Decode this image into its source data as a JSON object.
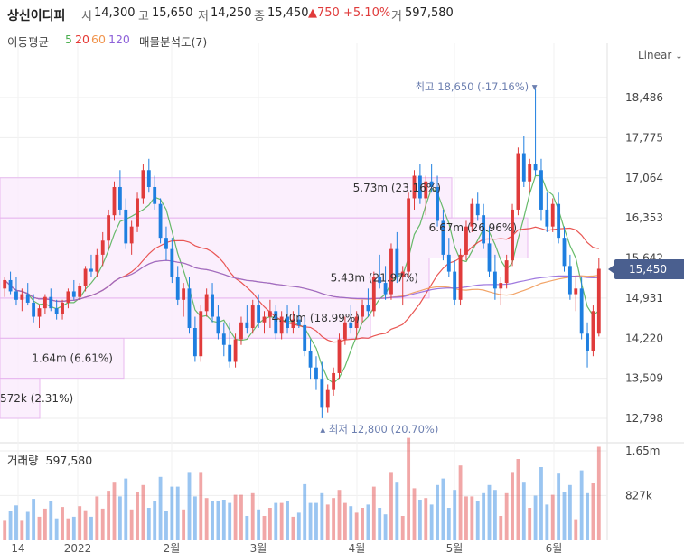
{
  "header": {
    "name": "상신이디피",
    "open_label": "시",
    "open": "14,300",
    "high_label": "고",
    "high": "15,650",
    "low_label": "저",
    "low": "14,250",
    "close_label": "종",
    "close": "15,450",
    "change": "▲750",
    "change_pct": "+5.10%",
    "volume_label": "거",
    "volume": "597,580"
  },
  "indicators": {
    "ma_label": "이동평균",
    "ma_periods": [
      "5",
      "20",
      "60",
      "120"
    ],
    "ma_colors": [
      "#4caf50",
      "#e53935",
      "#f0944d",
      "#8e62d9"
    ],
    "profile_label": "매물분석도(7)"
  },
  "scale_label": "Linear",
  "last_price_tag": "15,450",
  "volume_panel": {
    "label": "거래량",
    "value": "597,580"
  },
  "chart_data": {
    "type": "candlestick",
    "y_ticks": [
      "18,486",
      "17,775",
      "17,064",
      "16,353",
      "15,642",
      "14,931",
      "14,220",
      "13,509",
      "12,798"
    ],
    "y_tick_values": [
      18486,
      17775,
      17064,
      16353,
      15642,
      14931,
      14220,
      13509,
      12798
    ],
    "x_ticks": [
      "14",
      "2022",
      "2월",
      "3월",
      "4월",
      "5월",
      "6월"
    ],
    "volume_ticks": [
      "1.65m",
      "827k"
    ],
    "volume_tick_values": [
      1650000,
      827000
    ],
    "annotations": [
      {
        "label": "최고 18,650 (-17.16%)",
        "value": 18650
      },
      {
        "label": "최저 12,800 (20.70%)",
        "value": 12800
      }
    ],
    "volume_profile": [
      {
        "label": "572k (2.31%)",
        "low": 12798,
        "high": 13509
      },
      {
        "label": "1.64m (6.61%)",
        "low": 13509,
        "high": 14220
      },
      {
        "label": "4.70m (18.99%)",
        "low": 14220,
        "high": 14931
      },
      {
        "label": "5.43m (21.97%)",
        "low": 14931,
        "high": 15642
      },
      {
        "label": "6.67m (26.96%)",
        "low": 15642,
        "high": 16353
      },
      {
        "label": "5.73m (23.16%)",
        "low": 16353,
        "high": 17064
      }
    ],
    "candles": [
      [
        15100,
        15300,
        14950,
        15250
      ],
      [
        15250,
        15400,
        15000,
        15050
      ],
      [
        15050,
        15300,
        14800,
        14900
      ],
      [
        14900,
        15100,
        14700,
        15000
      ],
      [
        15000,
        15200,
        14800,
        14850
      ],
      [
        14850,
        15000,
        14500,
        14600
      ],
      [
        14600,
        14800,
        14400,
        14750
      ],
      [
        14750,
        15000,
        14650,
        14950
      ],
      [
        14950,
        15100,
        14700,
        14750
      ],
      [
        14750,
        14900,
        14550,
        14650
      ],
      [
        14650,
        14900,
        14550,
        14850
      ],
      [
        14850,
        15100,
        14750,
        15050
      ],
      [
        15050,
        15250,
        14900,
        14950
      ],
      [
        14950,
        15200,
        14900,
        15150
      ],
      [
        15150,
        15500,
        15050,
        15450
      ],
      [
        15450,
        15700,
        15300,
        15400
      ],
      [
        15400,
        15800,
        15300,
        15700
      ],
      [
        15700,
        16100,
        15500,
        15950
      ],
      [
        15950,
        16500,
        15800,
        16400
      ],
      [
        16400,
        17000,
        16300,
        16900
      ],
      [
        16900,
        17200,
        16400,
        16500
      ],
      [
        16500,
        16700,
        15800,
        15900
      ],
      [
        15900,
        16300,
        15700,
        16200
      ],
      [
        16200,
        16800,
        16100,
        16700
      ],
      [
        16700,
        17300,
        16600,
        17200
      ],
      [
        17200,
        17400,
        16800,
        16900
      ],
      [
        16900,
        17100,
        16500,
        16600
      ],
      [
        16600,
        16700,
        15900,
        16000
      ],
      [
        16000,
        16200,
        15600,
        15800
      ],
      [
        15800,
        16000,
        15200,
        15300
      ],
      [
        15300,
        15500,
        14800,
        14900
      ],
      [
        14900,
        15200,
        14600,
        15100
      ],
      [
        15100,
        15300,
        14300,
        14400
      ],
      [
        14400,
        14600,
        13800,
        13900
      ],
      [
        13900,
        14800,
        13800,
        14700
      ],
      [
        14700,
        15100,
        14600,
        15000
      ],
      [
        15000,
        15200,
        14500,
        14600
      ],
      [
        14600,
        14800,
        14200,
        14300
      ],
      [
        14300,
        14500,
        13900,
        14100
      ],
      [
        14100,
        14500,
        13700,
        13800
      ],
      [
        13800,
        14300,
        13700,
        14200
      ],
      [
        14200,
        14600,
        14100,
        14500
      ],
      [
        14500,
        14800,
        14300,
        14400
      ],
      [
        14400,
        14900,
        14300,
        14800
      ],
      [
        14800,
        15000,
        14400,
        14500
      ],
      [
        14500,
        14700,
        14300,
        14600
      ],
      [
        14600,
        14900,
        14400,
        14700
      ],
      [
        14700,
        14800,
        14200,
        14300
      ],
      [
        14300,
        14700,
        14200,
        14600
      ],
      [
        14600,
        14800,
        14300,
        14400
      ],
      [
        14400,
        14700,
        14300,
        14550
      ],
      [
        14550,
        14800,
        14400,
        14450
      ],
      [
        14450,
        14600,
        13900,
        14000
      ],
      [
        14000,
        14200,
        13500,
        13700
      ],
      [
        13700,
        13900,
        13300,
        13500
      ],
      [
        13500,
        13800,
        12800,
        13000
      ],
      [
        13000,
        13400,
        12900,
        13300
      ],
      [
        13300,
        13700,
        13200,
        13600
      ],
      [
        13600,
        14300,
        13500,
        14200
      ],
      [
        14200,
        14600,
        14100,
        14500
      ],
      [
        14500,
        14800,
        14300,
        14400
      ],
      [
        14400,
        14700,
        14200,
        14600
      ],
      [
        14600,
        14900,
        14500,
        14800
      ],
      [
        14800,
        15100,
        14600,
        14700
      ],
      [
        14700,
        15400,
        14600,
        15300
      ],
      [
        15300,
        15700,
        15100,
        15200
      ],
      [
        15200,
        15500,
        14900,
        15000
      ],
      [
        15000,
        15900,
        14900,
        15800
      ],
      [
        15800,
        16100,
        15200,
        15300
      ],
      [
        15300,
        15500,
        14800,
        15400
      ],
      [
        15400,
        16800,
        15300,
        16700
      ],
      [
        16700,
        17200,
        16500,
        17100
      ],
      [
        17100,
        17300,
        16600,
        16700
      ],
      [
        16700,
        17100,
        16400,
        17000
      ],
      [
        17000,
        17300,
        16800,
        16900
      ],
      [
        16900,
        17100,
        16200,
        16300
      ],
      [
        16300,
        16500,
        15600,
        15700
      ],
      [
        15700,
        16000,
        15300,
        15400
      ],
      [
        15400,
        15600,
        14800,
        14900
      ],
      [
        14900,
        15800,
        14800,
        15700
      ],
      [
        15700,
        16300,
        15600,
        16200
      ],
      [
        16200,
        16700,
        16100,
        16600
      ],
      [
        16600,
        16800,
        16300,
        16400
      ],
      [
        16400,
        16600,
        15800,
        15900
      ],
      [
        15900,
        16200,
        15300,
        15400
      ],
      [
        15400,
        15700,
        14900,
        15100
      ],
      [
        15100,
        15300,
        14800,
        15200
      ],
      [
        15200,
        15700,
        15100,
        15600
      ],
      [
        15600,
        16600,
        15500,
        16500
      ],
      [
        16500,
        17600,
        16400,
        17500
      ],
      [
        17500,
        17800,
        16900,
        17000
      ],
      [
        17000,
        17400,
        16800,
        17300
      ],
      [
        17300,
        18650,
        17100,
        17200
      ],
      [
        17200,
        17400,
        16300,
        16500
      ],
      [
        16500,
        16800,
        16100,
        16200
      ],
      [
        16200,
        16700,
        16100,
        16600
      ],
      [
        16600,
        16800,
        15900,
        16000
      ],
      [
        16000,
        16200,
        15400,
        15500
      ],
      [
        15500,
        15700,
        14900,
        15000
      ],
      [
        15000,
        15300,
        14700,
        15100
      ],
      [
        15100,
        15300,
        14200,
        14300
      ],
      [
        14300,
        14500,
        13700,
        14000
      ],
      [
        14000,
        14800,
        13900,
        14700
      ],
      [
        14300,
        15650,
        14250,
        15450
      ]
    ],
    "volume_scale_max": 1800000
  }
}
